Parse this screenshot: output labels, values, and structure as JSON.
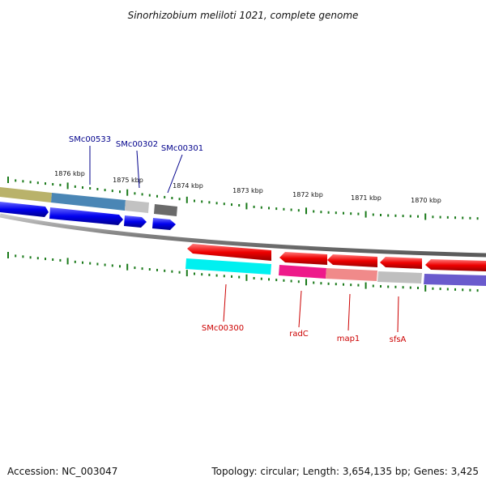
{
  "title": "Sinorhizobium meliloti 1021, complete genome",
  "footer": {
    "accession": "Accession: NC_003047",
    "summary": "Topology: circular; Length: 3,654,135 bp; Genes: 3,425"
  },
  "scale_labels": [
    "1876 kbp",
    "1875 kbp",
    "1874 kbp",
    "1873 kbp",
    "1872 kbp",
    "1871 kbp",
    "1870 kbp"
  ],
  "forward_gene_labels": [
    "SMc00533",
    "SMc00302",
    "SMc00301"
  ],
  "reverse_gene_labels": [
    "SMc00300",
    "radC",
    "map1",
    "sfsA"
  ],
  "colors": {
    "forward_label": "#00008b",
    "reverse_label": "#cc0000",
    "tick": "#1a7a1a",
    "backbone": "#808080",
    "forward_arrow": "#0000ee",
    "reverse_arrow": "#ee0000"
  }
}
